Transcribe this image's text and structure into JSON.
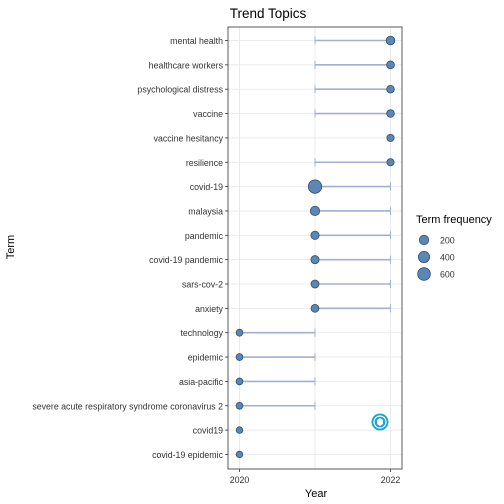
{
  "chart_data": {
    "type": "scatter",
    "title": "Trend Topics",
    "xlabel": "Year",
    "ylabel": "Term",
    "xlim": [
      2020,
      2022
    ],
    "x_ticks": [
      "2020",
      "2022"
    ],
    "grid": true,
    "legend": {
      "title": "Term frequency",
      "position": "right",
      "sizes": [
        200,
        400,
        600
      ],
      "labels": [
        "200",
        "400",
        "600"
      ]
    },
    "terms": [
      {
        "term": "mental health",
        "q1": 2021,
        "median": 2022,
        "q3": 2022,
        "freq": 150
      },
      {
        "term": "healthcare workers",
        "q1": 2021,
        "median": 2022,
        "q3": 2022,
        "freq": 90
      },
      {
        "term": "psychological distress",
        "q1": 2021,
        "median": 2022,
        "q3": 2022,
        "freq": 80
      },
      {
        "term": "vaccine",
        "q1": 2021,
        "median": 2022,
        "q3": 2022,
        "freq": 80
      },
      {
        "term": "vaccine hesitancy",
        "q1": 2022,
        "median": 2022,
        "q3": 2022,
        "freq": 60
      },
      {
        "term": "resilience",
        "q1": 2021,
        "median": 2022,
        "q3": 2022,
        "freq": 60
      },
      {
        "term": "covid-19",
        "q1": 2021,
        "median": 2021,
        "q3": 2022,
        "freq": 720
      },
      {
        "term": "malaysia",
        "q1": 2021,
        "median": 2021,
        "q3": 2022,
        "freq": 200
      },
      {
        "term": "pandemic",
        "q1": 2021,
        "median": 2021,
        "q3": 2022,
        "freq": 120
      },
      {
        "term": "covid-19 pandemic",
        "q1": 2021,
        "median": 2021,
        "q3": 2022,
        "freq": 110
      },
      {
        "term": "sars-cov-2",
        "q1": 2021,
        "median": 2021,
        "q3": 2022,
        "freq": 100
      },
      {
        "term": "anxiety",
        "q1": 2021,
        "median": 2021,
        "q3": 2022,
        "freq": 90
      },
      {
        "term": "technology",
        "q1": 2020,
        "median": 2020,
        "q3": 2021,
        "freq": 40
      },
      {
        "term": "epidemic",
        "q1": 2020,
        "median": 2020,
        "q3": 2021,
        "freq": 40
      },
      {
        "term": "asia-pacific",
        "q1": 2020,
        "median": 2020,
        "q3": 2021,
        "freq": 40
      },
      {
        "term": "severe acute respiratory syndrome coronavirus 2",
        "q1": 2020,
        "median": 2020,
        "q3": 2021,
        "freq": 40
      },
      {
        "term": "covid19",
        "q1": 2020,
        "median": 2020,
        "q3": 2020,
        "freq": 30
      },
      {
        "term": "covid-19 epidemic",
        "q1": 2020,
        "median": 2020,
        "q3": 2020,
        "freq": 30
      }
    ],
    "colors": {
      "point_fill": "#5b86b5",
      "point_stroke": "#2f4f6f",
      "segment": "#a3aed3",
      "panel_border": "#333333",
      "grid": "#ebebeb",
      "watermark": "#1aa3d6"
    }
  }
}
